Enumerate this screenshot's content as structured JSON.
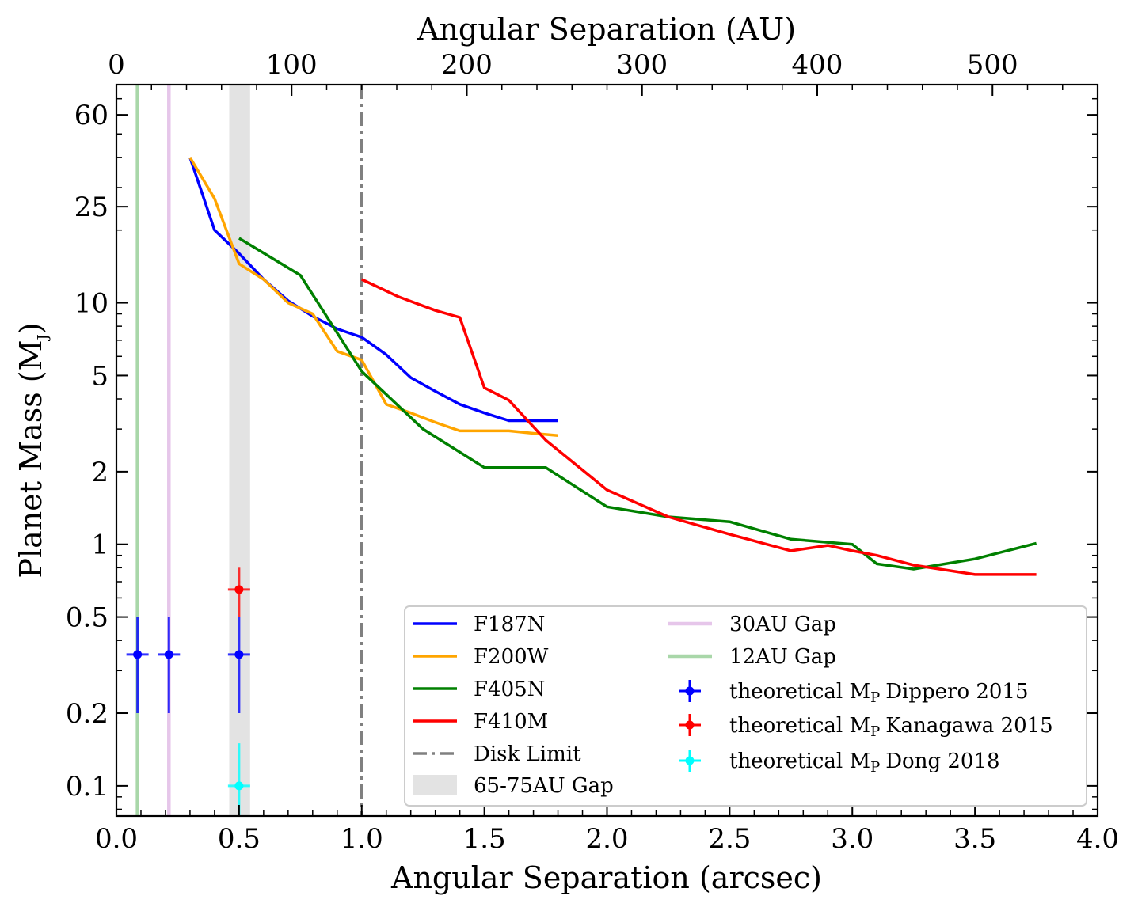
{
  "chart_data": {
    "type": "line",
    "xlabel": "Angular Separation (arcsec)",
    "xlabel_top": "Angular Separation (AU)",
    "ylabel": "Planet Mass (M",
    "ylabel_sub": "J",
    "ylabel_close": ")",
    "xlim": [
      0.0,
      4.0
    ],
    "ylim": [
      0.075,
      80
    ],
    "yscale": "log",
    "x_ticks": [
      {
        "v": 0.0,
        "label": "0.0"
      },
      {
        "v": 0.5,
        "label": "0.5"
      },
      {
        "v": 1.0,
        "label": "1.0"
      },
      {
        "v": 1.5,
        "label": "1.5"
      },
      {
        "v": 2.0,
        "label": "2.0"
      },
      {
        "v": 2.5,
        "label": "2.5"
      },
      {
        "v": 3.0,
        "label": "3.0"
      },
      {
        "v": 3.5,
        "label": "3.5"
      },
      {
        "v": 4.0,
        "label": "4.0"
      }
    ],
    "y_ticks": [
      {
        "v": 0.1,
        "label": "0.1"
      },
      {
        "v": 0.2,
        "label": "0.2"
      },
      {
        "v": 0.5,
        "label": "0.5"
      },
      {
        "v": 1,
        "label": "1"
      },
      {
        "v": 2,
        "label": "2"
      },
      {
        "v": 5,
        "label": "5"
      },
      {
        "v": 10,
        "label": "10"
      },
      {
        "v": 25,
        "label": "25"
      },
      {
        "v": 60,
        "label": "60"
      }
    ],
    "top_axis_au_per_arcsec": 140,
    "top_ticks": [
      {
        "v": 0,
        "label": "0"
      },
      {
        "v": 100,
        "label": "100"
      },
      {
        "v": 200,
        "label": "200"
      },
      {
        "v": 300,
        "label": "300"
      },
      {
        "v": 400,
        "label": "400"
      },
      {
        "v": 500,
        "label": "500"
      }
    ],
    "series": [
      {
        "name": "F187N",
        "color": "#0000ff",
        "x": [
          0.3,
          0.4,
          0.5,
          0.6,
          0.7,
          0.8,
          0.9,
          1.0,
          1.1,
          1.2,
          1.3,
          1.4,
          1.5,
          1.6,
          1.7,
          1.8
        ],
        "y": [
          40,
          20,
          16,
          12.5,
          10.2,
          8.8,
          7.8,
          7.2,
          6.1,
          4.9,
          4.3,
          3.8,
          3.5,
          3.25,
          3.25,
          3.25
        ]
      },
      {
        "name": "F200W",
        "color": "#ffa500",
        "x": [
          0.3,
          0.4,
          0.5,
          0.6,
          0.7,
          0.8,
          0.9,
          1.0,
          1.1,
          1.2,
          1.3,
          1.4,
          1.5,
          1.6,
          1.7,
          1.8
        ],
        "y": [
          40,
          27,
          14.5,
          12.5,
          10,
          9,
          6.3,
          5.8,
          3.8,
          3.5,
          3.2,
          2.95,
          2.95,
          2.95,
          2.88,
          2.82
        ]
      },
      {
        "name": "F405N",
        "color": "#008000",
        "x": [
          0.5,
          0.75,
          1.0,
          1.25,
          1.5,
          1.75,
          2.0,
          2.25,
          2.5,
          2.75,
          3.0,
          3.1,
          3.25,
          3.5,
          3.75
        ],
        "y": [
          18.5,
          13,
          5.2,
          3.0,
          2.08,
          2.08,
          1.43,
          1.3,
          1.24,
          1.05,
          1.0,
          0.83,
          0.79,
          0.87,
          1.01
        ]
      },
      {
        "name": "F410M",
        "color": "#ff0000",
        "x": [
          1.0,
          1.15,
          1.3,
          1.4,
          1.5,
          1.6,
          1.75,
          2.0,
          2.25,
          2.5,
          2.75,
          2.9,
          3.0,
          3.1,
          3.25,
          3.5,
          3.75
        ],
        "y": [
          12.5,
          10.6,
          9.3,
          8.7,
          4.45,
          3.95,
          2.7,
          1.68,
          1.3,
          1.1,
          0.94,
          0.99,
          0.94,
          0.9,
          0.82,
          0.75,
          0.75
        ]
      }
    ],
    "disk_limit": {
      "name": "Disk Limit",
      "x": 1.0,
      "color": "#808080"
    },
    "gap_band": {
      "name": "65-75AU Gap",
      "x0": 0.46,
      "x1": 0.545,
      "color": "#e3e3e3"
    },
    "gap_lines": [
      {
        "name": "30AU Gap",
        "x": 0.214,
        "color": "#e6c6ea"
      },
      {
        "name": "12AU Gap",
        "x": 0.086,
        "color": "#a9d7a9"
      }
    ],
    "errorbars": [
      {
        "name": "theoretical M",
        "sub": "P",
        "ref": "Dippero 2015",
        "color": "#0000ff",
        "points": [
          {
            "x": 0.086,
            "y": 0.35,
            "lo": 0.2,
            "hi": 0.5
          },
          {
            "x": 0.214,
            "y": 0.35,
            "lo": 0.2,
            "hi": 0.5
          },
          {
            "x": 0.5,
            "y": 0.35,
            "lo": 0.2,
            "hi": 0.5
          }
        ]
      },
      {
        "name": "theoretical M",
        "sub": "P",
        "ref": "Kanagawa 2015",
        "color": "#ff0000",
        "points": [
          {
            "x": 0.5,
            "y": 0.65,
            "lo": 0.5,
            "hi": 0.8
          }
        ]
      },
      {
        "name": "theoretical M",
        "sub": "P",
        "ref": "Dong 2018",
        "color": "#00ffff",
        "points": [
          {
            "x": 0.5,
            "y": 0.1,
            "lo": 0.075,
            "hi": 0.15
          }
        ]
      }
    ],
    "legend_position": "lower-right"
  }
}
